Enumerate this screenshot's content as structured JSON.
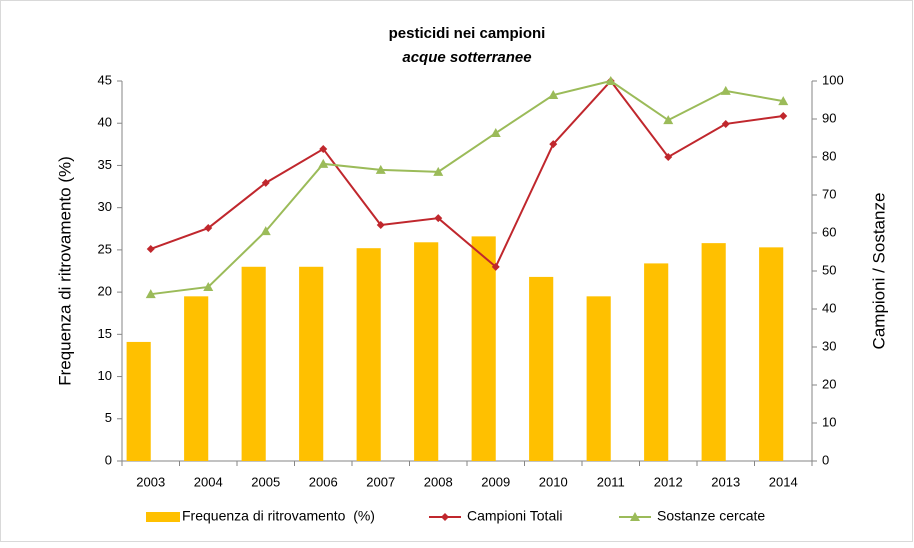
{
  "chart_data": {
    "type": "bar",
    "title": "pesticidi nei campioni",
    "subtitle": "acque sotterranee",
    "y_label": "Frequenza di ritrovamento (%)",
    "y2_label": "Campioni / Sostanze",
    "categories": [
      "2003",
      "2004",
      "2005",
      "2006",
      "2007",
      "2008",
      "2009",
      "2010",
      "2011",
      "2012",
      "2013",
      "2014"
    ],
    "series": [
      {
        "name": "Frequenza di ritrovamento  (%)",
        "type": "bar",
        "color": "#ffc000",
        "values": [
          14.1,
          19.5,
          23.0,
          23.0,
          25.2,
          25.9,
          26.6,
          21.8,
          19.5,
          23.4,
          25.8,
          25.3
        ]
      },
      {
        "name": "Campioni Totali",
        "type": "line",
        "axis": "y2",
        "color": "#c0272d",
        "marker": "diamond",
        "values": [
          55.8,
          61.3,
          73.2,
          82.1,
          62.1,
          63.9,
          51.1,
          83.4,
          100,
          80.0,
          88.7,
          90.8
        ]
      },
      {
        "name": "Sostanze cercate",
        "type": "line",
        "axis": "y2",
        "color": "#9bbb59",
        "marker": "triangle",
        "values": [
          43.9,
          45.8,
          60.5,
          78.2,
          76.6,
          76.1,
          86.3,
          96.3,
          100,
          89.7,
          97.4,
          94.7
        ]
      }
    ],
    "ylim": [
      0,
      45
    ],
    "yticks": [
      0,
      5,
      10,
      15,
      20,
      25,
      30,
      35,
      40,
      45
    ],
    "y2lim": [
      0,
      100
    ],
    "y2ticks": [
      0,
      10,
      20,
      30,
      40,
      50,
      60,
      70,
      80,
      90,
      100
    ],
    "grid": false,
    "legend": "bottom"
  }
}
